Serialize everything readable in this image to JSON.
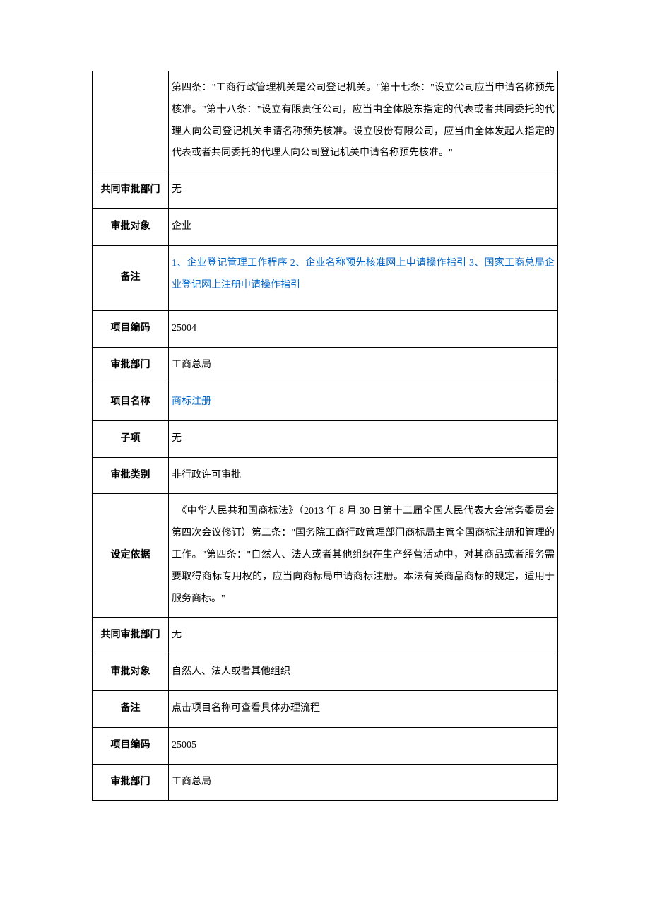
{
  "rows": [
    {
      "label": "",
      "value": "第四条：\"工商行政管理机关是公司登记机关。\"第十七条：\"设立公司应当申请名称预先核准。\"第十八条：\"设立有限责任公司，应当由全体股东指定的代表或者共同委托的代理人向公司登记机关申请名称预先核准。设立股份有限公司，应当由全体发起人指定的代表或者共同委托的代理人向公司登记机关申请名称预先核准。\"",
      "isLink": false,
      "labelHidden": true
    },
    {
      "label": "共同审批部门",
      "value": "无",
      "isLink": false
    },
    {
      "label": "审批对象",
      "value": "企业",
      "isLink": false
    },
    {
      "label": "备注",
      "value": "1、企业登记管理工作程序 2、企业名称预先核准网上申请操作指引 3、国家工商总局企业登记网上注册申请操作指引",
      "isLink": true,
      "extraPadding": true
    },
    {
      "label": "项目编码",
      "value": "25004",
      "isLink": false
    },
    {
      "label": "审批部门",
      "value": "工商总局",
      "isLink": false
    },
    {
      "label": "项目名称",
      "value": "商标注册",
      "isLink": true
    },
    {
      "label": "子项",
      "value": "无",
      "isLink": false
    },
    {
      "label": "审批类别",
      "value": "非行政许可审批",
      "isLink": false
    },
    {
      "label": "设定依据",
      "value": "　《中华人民共和国商标法》（2013 年 8 月 30 日第十二届全国人民代表大会常务委员会第四次会议修订）第二条：\"国务院工商行政管理部门商标局主管全国商标注册和管理的工作。\"第四条：\"自然人、法人或者其他组织在生产经营活动中，对其商品或者服务需要取得商标专用权的，应当向商标局申请商标注册。本法有关商品商标的规定，适用于服务商标。\"",
      "isLink": false
    },
    {
      "label": "共同审批部门",
      "value": "无",
      "isLink": false
    },
    {
      "label": "审批对象",
      "value": "自然人、法人或者其他组织",
      "isLink": false
    },
    {
      "label": "备注",
      "value": "点击项目名称可查看具体办理流程",
      "isLink": false
    },
    {
      "label": "项目编码",
      "value": "25005",
      "isLink": false
    },
    {
      "label": "审批部门",
      "value": "工商总局",
      "isLink": false
    }
  ],
  "colors": {
    "text": "#000000",
    "link": "#0066cc",
    "border": "#000000",
    "background": "#ffffff"
  }
}
